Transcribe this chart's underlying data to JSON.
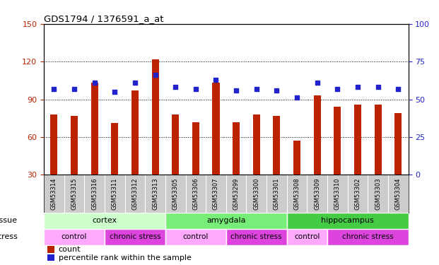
{
  "title": "GDS1794 / 1376591_a_at",
  "samples": [
    "GSM53314",
    "GSM53315",
    "GSM53316",
    "GSM53311",
    "GSM53312",
    "GSM53313",
    "GSM53305",
    "GSM53306",
    "GSM53307",
    "GSM53299",
    "GSM53300",
    "GSM53301",
    "GSM53308",
    "GSM53309",
    "GSM53310",
    "GSM53302",
    "GSM53303",
    "GSM53304"
  ],
  "counts": [
    78,
    77,
    103,
    71,
    97,
    122,
    78,
    72,
    103,
    72,
    78,
    77,
    57,
    93,
    84,
    86,
    86,
    79
  ],
  "percentiles": [
    57,
    57,
    61,
    55,
    61,
    66,
    58,
    57,
    63,
    56,
    57,
    56,
    51,
    61,
    57,
    58,
    58,
    57
  ],
  "ylim_left": [
    30,
    150
  ],
  "ylim_right": [
    0,
    100
  ],
  "yticks_left": [
    30,
    60,
    90,
    120,
    150
  ],
  "yticks_right": [
    0,
    25,
    50,
    75,
    100
  ],
  "bar_color": "#bb2200",
  "dot_color": "#2222cc",
  "tissue_groups": [
    {
      "label": "cortex",
      "start": 0,
      "end": 6,
      "color": "#ccffcc"
    },
    {
      "label": "amygdala",
      "start": 6,
      "end": 12,
      "color": "#77ee77"
    },
    {
      "label": "hippocampus",
      "start": 12,
      "end": 18,
      "color": "#44cc44"
    }
  ],
  "stress_groups": [
    {
      "label": "control",
      "start": 0,
      "end": 3,
      "color": "#ffaaff"
    },
    {
      "label": "chronic stress",
      "start": 3,
      "end": 6,
      "color": "#dd44dd"
    },
    {
      "label": "control",
      "start": 6,
      "end": 9,
      "color": "#ffaaff"
    },
    {
      "label": "chronic stress",
      "start": 9,
      "end": 12,
      "color": "#dd44dd"
    },
    {
      "label": "control",
      "start": 12,
      "end": 14,
      "color": "#ffaaff"
    },
    {
      "label": "chronic stress",
      "start": 14,
      "end": 18,
      "color": "#dd44dd"
    }
  ],
  "tick_bg_color": "#cccccc",
  "plot_bg_color": "#ffffff",
  "tissue_label": "tissue",
  "stress_label": "stress",
  "legend_count": "count",
  "legend_pct": "percentile rank within the sample",
  "bar_width": 0.35,
  "dot_size": 22
}
